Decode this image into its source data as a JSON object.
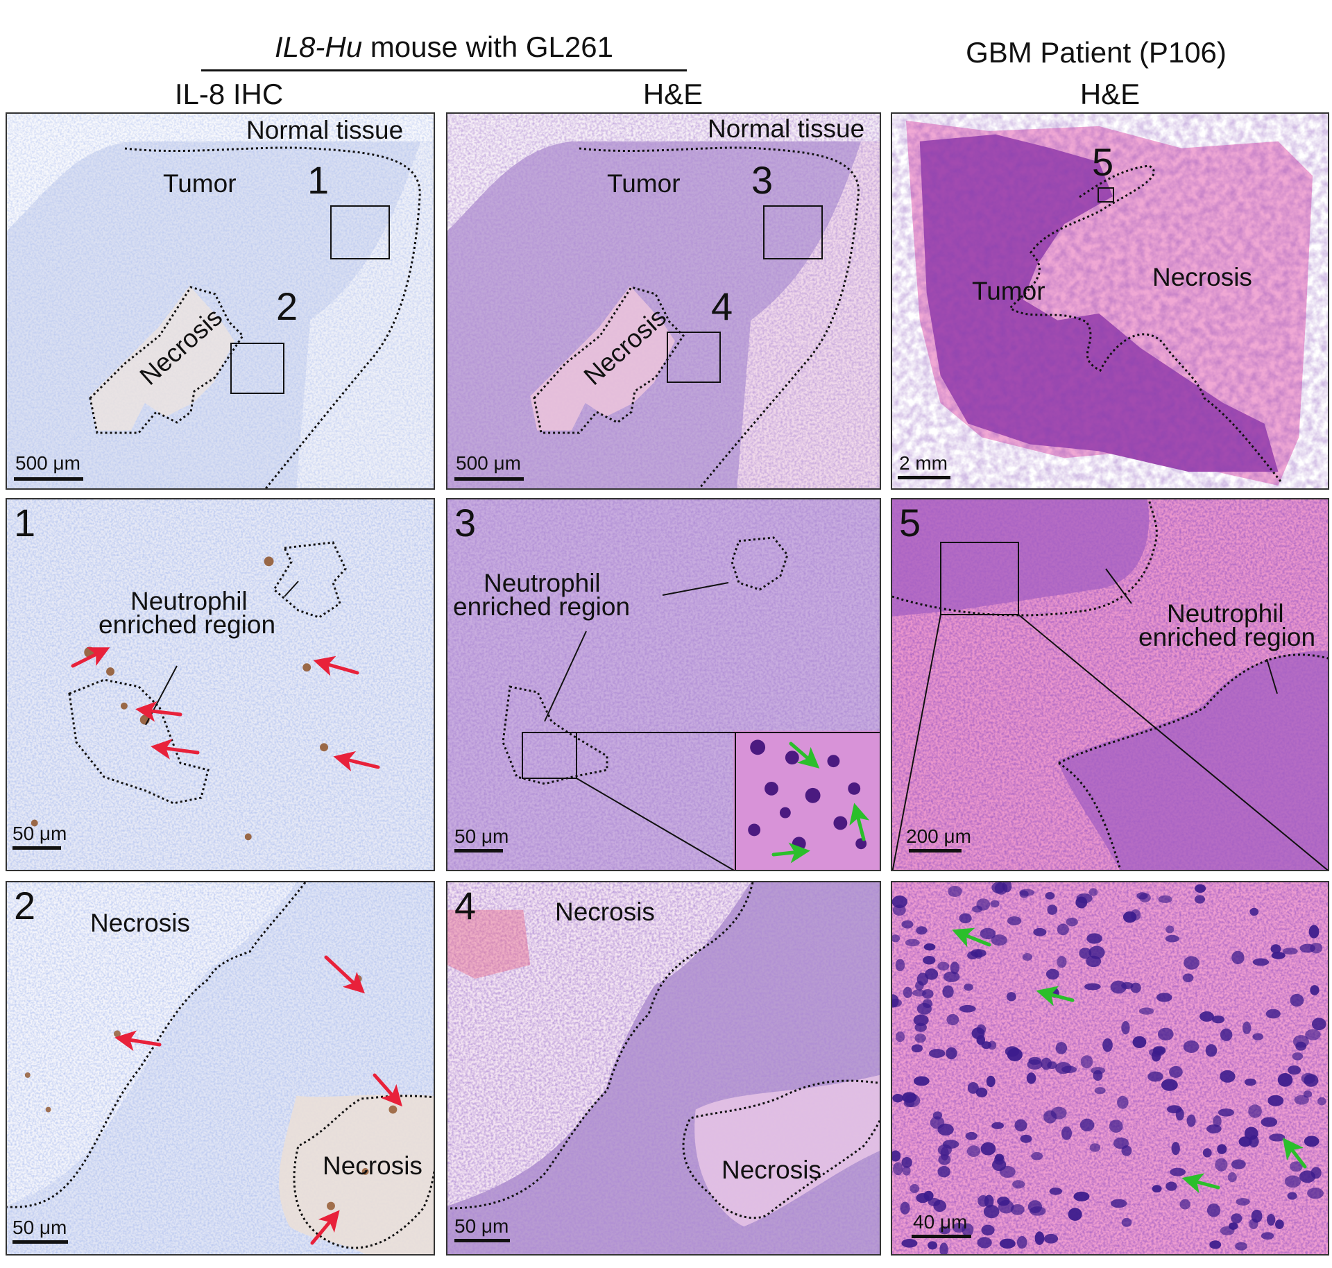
{
  "headers": {
    "group_left_italic": "IL8-Hu",
    "group_left_rest": " mouse with GL261",
    "group_right": "GBM Patient (P106)",
    "col1": "IL-8 IHC",
    "col2": "H&E",
    "col3": "H&E"
  },
  "panels": {
    "a": {
      "normal": "Normal tissue",
      "tumor": "Tumor",
      "necrosis": "Necrosis",
      "box1": "1",
      "box2": "2",
      "scale": "500 μm"
    },
    "b": {
      "normal": "Normal tissue",
      "tumor": "Tumor",
      "necrosis": "Necrosis",
      "box3": "3",
      "box4": "4",
      "scale": "500 μm"
    },
    "c": {
      "tumor": "Tumor",
      "necrosis": "Necrosis",
      "box5": "5",
      "scale": "2 mm"
    },
    "d": {
      "num": "1",
      "label1": "Neutrophil",
      "label2": "enriched region",
      "scale": "50 μm"
    },
    "e": {
      "num": "3",
      "label1": "Neutrophil",
      "label2": "enriched region",
      "scale": "50 μm"
    },
    "f": {
      "num": "5",
      "label1": "Neutrophil",
      "label2": "enriched region",
      "scale": "200 μm"
    },
    "g": {
      "num": "2",
      "necrosis1": "Necrosis",
      "necrosis2": "Necrosis",
      "scale": "50 μm"
    },
    "h": {
      "num": "4",
      "necrosis1": "Necrosis",
      "necrosis2": "Necrosis",
      "scale": "50 μm"
    },
    "i": {
      "scale": "40 μm"
    }
  },
  "colors": {
    "ihc_bg": "#dfe4f4",
    "he_mouse_bg": "#c6a8dc",
    "he_human_bg": "#e98fcb",
    "necrosis_pink": "#f2c7e3",
    "dab_brown": "#8a4a1c",
    "red_arrow": "#e8213a",
    "green_arrow": "#2bbf2b"
  }
}
